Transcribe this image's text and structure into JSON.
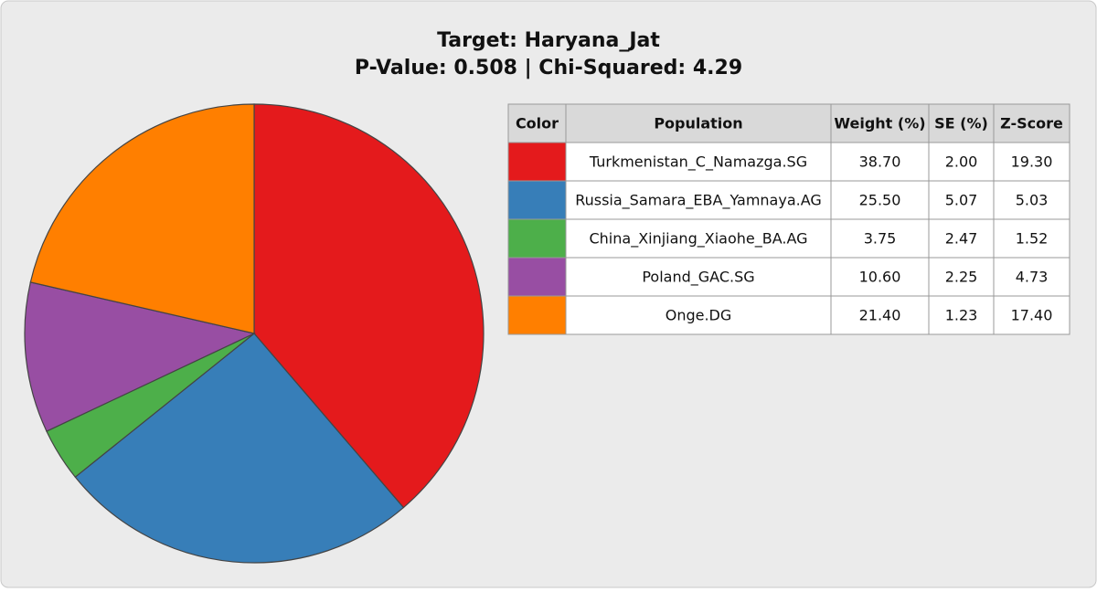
{
  "chart_data": {
    "type": "pie",
    "title": "Target: Haryana_Jat",
    "subtitle": "P-Value: 0.508 | Chi-Squared: 4.29",
    "categories": [
      "Turkmenistan_C_Namazga.SG",
      "Russia_Samara_EBA_Yamnaya.AG",
      "China_Xinjiang_Xiaohe_BA.AG",
      "Poland_GAC.SG",
      "Onge.DG"
    ],
    "values": [
      38.7,
      25.5,
      3.75,
      10.6,
      21.4
    ],
    "value_labels": [
      "38.70",
      "25.50",
      "3.75",
      "10.60",
      "21.40"
    ],
    "colors": [
      "#e41a1c",
      "#377eb8",
      "#4daf4a",
      "#984ea3",
      "#ff7f00"
    ]
  },
  "table": {
    "columns": [
      "Color",
      "Population",
      "Weight (%)",
      "SE (%)",
      "Z-Score"
    ],
    "se": [
      "2.00",
      "5.07",
      "2.47",
      "2.25",
      "1.23"
    ],
    "z_score": [
      "19.30",
      "5.03",
      "1.52",
      "4.73",
      "17.40"
    ]
  }
}
